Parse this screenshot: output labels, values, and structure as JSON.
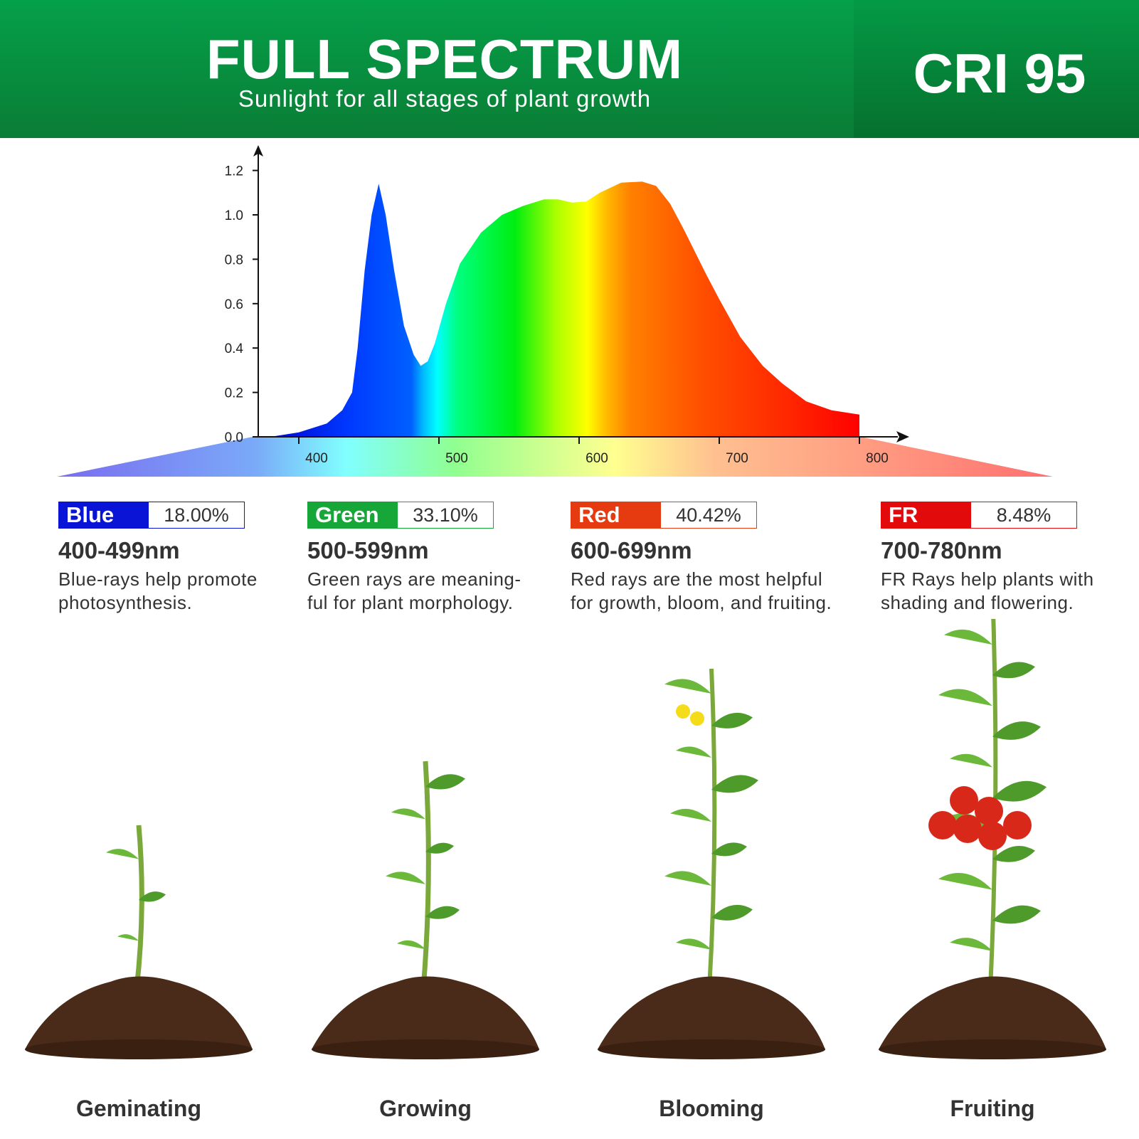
{
  "header": {
    "title": "FULL SPECTRUM",
    "subtitle": "Sunlight for all stages of plant growth",
    "cri": "CRI 95",
    "colors": {
      "green_top": "#05a04a",
      "green_bottom": "#0a7d35"
    }
  },
  "chart_data": {
    "type": "area",
    "title": "",
    "xlabel": "",
    "ylabel": "",
    "xlim": [
      367,
      820
    ],
    "ylim": [
      0,
      1.25
    ],
    "x_ticks": [
      "400",
      "500",
      "600",
      "700",
      "800"
    ],
    "y_ticks": [
      "0.0",
      "0.2",
      "0.4",
      "0.6",
      "0.8",
      "1.0",
      "1.2"
    ],
    "grid": false,
    "fill": "wavelength-colored spectrum gradient",
    "x": [
      380,
      400,
      420,
      431,
      438,
      442,
      447,
      452,
      457,
      462,
      468,
      475,
      482,
      487,
      492,
      497,
      505,
      515,
      530,
      545,
      560,
      575,
      585,
      595,
      605,
      615,
      630,
      645,
      655,
      665,
      675,
      690,
      700,
      715,
      731,
      745,
      762,
      780,
      795,
      800
    ],
    "y": [
      0.0,
      0.02,
      0.06,
      0.12,
      0.2,
      0.4,
      0.75,
      1.0,
      1.14,
      1.0,
      0.75,
      0.5,
      0.37,
      0.32,
      0.34,
      0.42,
      0.6,
      0.78,
      0.92,
      1.0,
      1.04,
      1.07,
      1.07,
      1.055,
      1.06,
      1.1,
      1.145,
      1.15,
      1.13,
      1.05,
      0.93,
      0.74,
      0.62,
      0.45,
      0.32,
      0.24,
      0.16,
      0.12,
      0.105,
      0.1
    ]
  },
  "bands": [
    {
      "name": "Blue",
      "percent": "18.00%",
      "range": "400-499nm",
      "desc1": "Blue-rays help promote",
      "desc2": "photosynthesis.",
      "color": "#0a14d6"
    },
    {
      "name": "Green",
      "percent": "33.10%",
      "range": "500-599nm",
      "desc1": "Green rays are meaning-",
      "desc2": "ful for plant morphology.",
      "color": "#17a638"
    },
    {
      "name": "Red",
      "percent": "40.42%",
      "range": "600-699nm",
      "desc1": "Red rays are the most helpful",
      "desc2": "for growth, bloom, and fruiting.",
      "color": "#e63a10"
    },
    {
      "name": "FR",
      "percent": "8.48%",
      "range": "700-780nm",
      "desc1": "FR Rays help plants with",
      "desc2": "shading and flowering.",
      "color": "#e20a0a"
    }
  ],
  "stages": [
    "Geminating",
    "Growing",
    "Blooming",
    "Fruiting"
  ]
}
